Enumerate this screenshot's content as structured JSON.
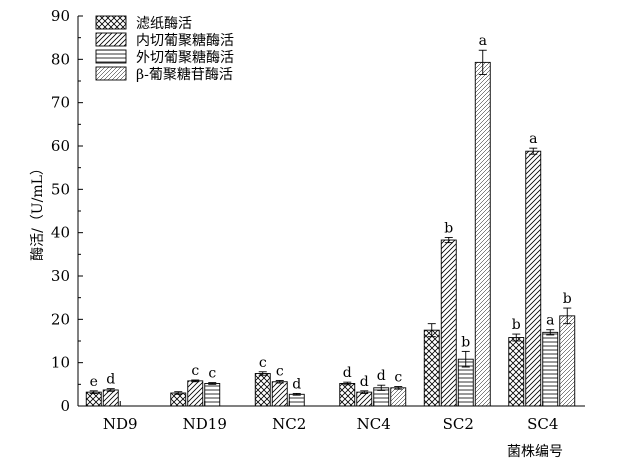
{
  "chart_data": {
    "type": "bar",
    "title": "",
    "xlabel": "菌株编号",
    "ylabel": "酶活/（U/mL）",
    "ylim": [
      0,
      90
    ],
    "yticks": [
      0,
      10,
      20,
      30,
      40,
      50,
      60,
      70,
      80,
      90
    ],
    "grid": false,
    "legend_position": "top-left",
    "categories": [
      "ND9",
      "ND19",
      "NC2",
      "NC4",
      "SC2",
      "SC4"
    ],
    "series": [
      {
        "name": "滤纸酶活",
        "pattern": "crosshatch",
        "values": [
          3.2,
          3.0,
          7.5,
          5.2,
          17.5,
          15.8
        ],
        "errors": [
          0.3,
          0.3,
          0.4,
          0.3,
          1.5,
          0.8
        ],
        "letters": [
          "e",
          "",
          "c",
          "d",
          "",
          "b"
        ]
      },
      {
        "name": "内切葡聚糖酶活",
        "pattern": "diagonal",
        "values": [
          3.7,
          5.8,
          5.6,
          3.2,
          38.3,
          58.8
        ],
        "errors": [
          0.3,
          0.2,
          0.3,
          0.3,
          0.6,
          0.7
        ],
        "letters": [
          "d",
          "c",
          "c",
          "d",
          "b",
          "a"
        ]
      },
      {
        "name": "外切葡聚糖酶活",
        "pattern": "horizontal",
        "values": [
          0,
          5.2,
          2.7,
          4.2,
          10.8,
          17.0
        ],
        "errors": [
          0,
          0.2,
          0.2,
          0.6,
          1.8,
          0.6
        ],
        "letters": [
          "",
          "c",
          "d",
          "d",
          "b",
          "a"
        ]
      },
      {
        "name": "β-葡聚糖苷酶活",
        "pattern": "fine-diagonal",
        "values": [
          0,
          0,
          0,
          4.2,
          79.3,
          20.8
        ],
        "errors": [
          0,
          0,
          0,
          0.3,
          2.8,
          1.8
        ],
        "letters": [
          "",
          "",
          "",
          "c",
          "a",
          "b"
        ]
      }
    ]
  }
}
